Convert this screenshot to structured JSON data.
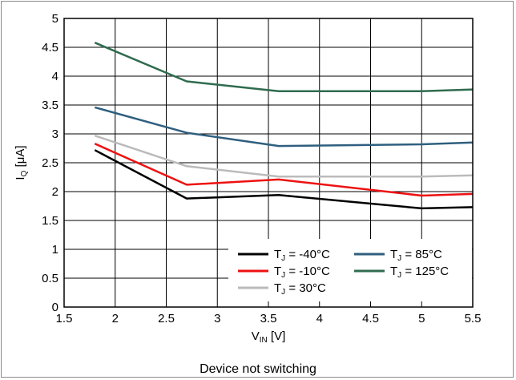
{
  "caption": "Device not switching",
  "chart_data": {
    "type": "line",
    "xlabel_main": "V",
    "xlabel_sub": "IN",
    "xlabel_unit": " [V]",
    "ylabel_main": "I",
    "ylabel_sub": "Q",
    "ylabel_unit": " [μA]",
    "xlim": [
      1.5,
      5.5
    ],
    "ylim": [
      0,
      5
    ],
    "x_ticks": [
      "1.5",
      "2",
      "2.5",
      "3",
      "3.5",
      "4",
      "4.5",
      "5",
      "5.5"
    ],
    "y_ticks": [
      "0",
      "0.5",
      "1",
      "1.5",
      "2",
      "2.5",
      "3",
      "3.5",
      "4",
      "4.5",
      "5"
    ],
    "grid": true,
    "legend_position": "bottom-right",
    "series": [
      {
        "name_main": "T",
        "name_sub": "J",
        "name_rest": " = -40°C",
        "color": "#000000",
        "x": [
          1.8,
          2.7,
          3.6,
          5.0,
          5.5
        ],
        "y": [
          2.72,
          1.88,
          1.94,
          1.71,
          1.73
        ]
      },
      {
        "name_main": "T",
        "name_sub": "J",
        "name_rest": " = -10°C",
        "color": "#ee1111",
        "x": [
          1.8,
          2.7,
          3.6,
          5.0,
          5.5
        ],
        "y": [
          2.83,
          2.12,
          2.21,
          1.93,
          1.96
        ]
      },
      {
        "name_main": "T",
        "name_sub": "J",
        "name_rest": " = 30°C",
        "color": "#bbbbbb",
        "x": [
          1.8,
          2.7,
          3.6,
          5.0,
          5.5
        ],
        "y": [
          2.97,
          2.44,
          2.26,
          2.26,
          2.28
        ]
      },
      {
        "name_main": "T",
        "name_sub": "J",
        "name_rest": " = 85°C",
        "color": "#2f5f7f",
        "x": [
          1.8,
          2.7,
          3.6,
          5.0,
          5.5
        ],
        "y": [
          3.46,
          3.02,
          2.79,
          2.82,
          2.85
        ]
      },
      {
        "name_main": "T",
        "name_sub": "J",
        "name_rest": " = 125°C",
        "color": "#2f6b4f",
        "x": [
          1.8,
          2.7,
          3.6,
          5.0,
          5.5
        ],
        "y": [
          4.58,
          3.91,
          3.74,
          3.74,
          3.77
        ]
      }
    ]
  }
}
